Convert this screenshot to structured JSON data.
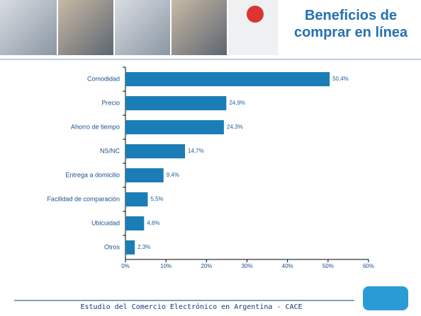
{
  "title": "Beneficios de comprar en línea",
  "footer": "Estudio del Comercio Electrónico en Argentina - CACE",
  "chart_data": {
    "type": "hbar",
    "categories": [
      "Comodidad",
      "Precio",
      "Ahorro de tiempo",
      "NS/NC",
      "Entrega a domicilio",
      "Facilidad de comparación",
      "Ubicuidad",
      "Otros"
    ],
    "values": [
      50.4,
      24.9,
      24.3,
      14.7,
      9.4,
      5.5,
      4.6,
      2.3
    ],
    "value_labels": [
      "50,4%",
      "24,9%",
      "24,3%",
      "14,7%",
      "9,4%",
      "5,5%",
      "4,6%",
      "2,3%"
    ],
    "color": "#1b7db6",
    "xlim": [
      0,
      60
    ],
    "xticks": [
      {
        "value": 0,
        "label": "0%"
      },
      {
        "value": 10,
        "label": "10%"
      },
      {
        "value": 20,
        "label": "20%"
      },
      {
        "value": 30,
        "label": "30%"
      },
      {
        "value": 40,
        "label": "40%"
      },
      {
        "value": 50,
        "label": "50%"
      },
      {
        "value": 60,
        "label": "60%"
      }
    ]
  }
}
